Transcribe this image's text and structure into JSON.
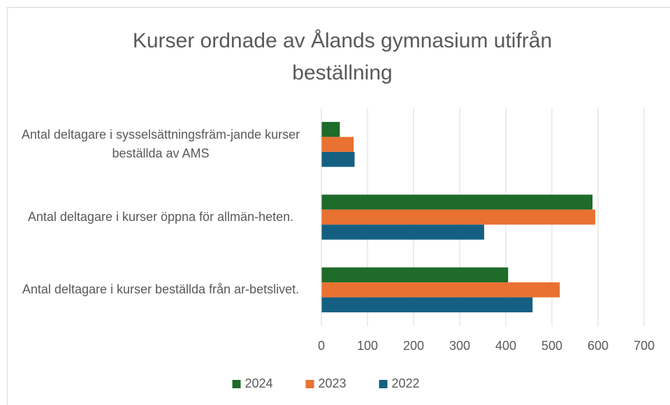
{
  "chart_data": {
    "type": "bar",
    "orientation": "horizontal",
    "title": "Kurser ordnade av Ålands gymnasium utifrån beställning",
    "categories": [
      "Antal deltagare i sysselsättningsfräm-jande kurser beställda av AMS",
      "Antal deltagare i kurser öppna för allmän-heten.",
      "Antal deltagare i kurser beställda från ar-betslivet."
    ],
    "series": [
      {
        "name": "2024",
        "color": "#1e6b2a",
        "values": [
          40,
          588,
          405
        ]
      },
      {
        "name": "2023",
        "color": "#e97132",
        "values": [
          70,
          594,
          517
        ]
      },
      {
        "name": "2022",
        "color": "#156082",
        "values": [
          72,
          353,
          458
        ]
      }
    ],
    "xlim": [
      0,
      700
    ],
    "xticks": [
      0,
      100,
      200,
      300,
      400,
      500,
      600,
      700
    ],
    "grid": true,
    "legend": "bottom"
  }
}
